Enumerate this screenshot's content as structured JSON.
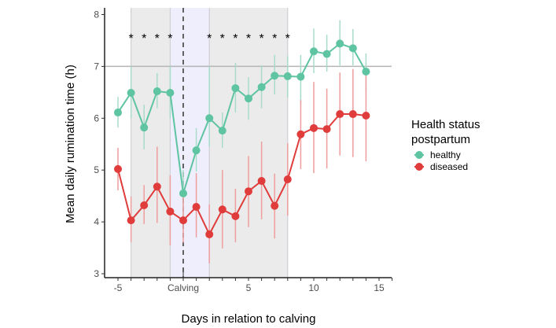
{
  "chart_data": {
    "type": "line",
    "title": "",
    "xlabel": "Days in relation to calving",
    "ylabel": "Mean daily rumination time (h)",
    "xlim": [
      -5.5,
      16
    ],
    "ylim": [
      3,
      8
    ],
    "x_ticks": [
      {
        "value": -5,
        "label": "-5"
      },
      {
        "value": 0,
        "label": "Calving"
      },
      {
        "value": 5,
        "label": "5"
      },
      {
        "value": 10,
        "label": "10"
      },
      {
        "value": 15,
        "label": "15"
      }
    ],
    "y_ticks": [
      {
        "value": 3,
        "label": "3"
      },
      {
        "value": 4,
        "label": "4"
      },
      {
        "value": 5,
        "label": "5"
      },
      {
        "value": 6,
        "label": "6"
      },
      {
        "value": 7,
        "label": "7"
      },
      {
        "value": 8,
        "label": "8"
      }
    ],
    "grid": false,
    "reference_line_y": 7,
    "calving_line_x": 0,
    "shaded_regions": [
      {
        "name": "grey-period",
        "x_start": -4,
        "x_end": 8,
        "color": "#ebebeb"
      },
      {
        "name": "transition-period",
        "x_start": -1,
        "x_end": 2,
        "color": "#eeeefc"
      }
    ],
    "significance_marker": "*",
    "significant_days": [
      -4,
      -3,
      -2,
      -1,
      2,
      3,
      4,
      5,
      6,
      7,
      8
    ],
    "x": [
      -5,
      -4,
      -3,
      -2,
      -1,
      0,
      1,
      2,
      3,
      4,
      5,
      6,
      7,
      8,
      9,
      10,
      11,
      12,
      13,
      14
    ],
    "series": [
      {
        "name": "healthy",
        "color": "#5ec4a1",
        "values": [
          6.11,
          6.49,
          5.82,
          6.52,
          6.49,
          4.55,
          5.38,
          6.0,
          5.76,
          6.58,
          6.38,
          6.6,
          6.82,
          6.81,
          6.8,
          7.29,
          7.24,
          7.44,
          7.35,
          6.9
        ],
        "lower": [
          5.82,
          6.0,
          5.4,
          6.19,
          6.0,
          4.1,
          4.97,
          5.45,
          5.43,
          6.11,
          5.97,
          6.19,
          6.46,
          6.4,
          6.26,
          6.87,
          6.9,
          7.02,
          7.02,
          6.5
        ],
        "upper": [
          6.41,
          7.0,
          6.26,
          6.87,
          7.0,
          5.0,
          5.81,
          7.0,
          6.11,
          7.07,
          6.79,
          7.02,
          7.22,
          7.2,
          7.22,
          7.73,
          7.61,
          7.89,
          7.72,
          7.25
        ]
      },
      {
        "name": "diseased",
        "color": "#e03c3c",
        "values": [
          5.02,
          4.03,
          4.32,
          4.68,
          4.2,
          4.03,
          4.29,
          3.76,
          4.24,
          4.11,
          4.59,
          4.79,
          4.31,
          4.82,
          5.69,
          5.81,
          5.79,
          6.08,
          6.08,
          6.05
        ],
        "lower": [
          4.61,
          3.61,
          3.96,
          3.98,
          3.55,
          3.6,
          3.7,
          3.2,
          3.49,
          3.61,
          3.9,
          4.05,
          3.68,
          4.12,
          5.02,
          4.94,
          5.03,
          5.28,
          5.25,
          5.17
        ],
        "upper": [
          5.43,
          4.49,
          4.71,
          5.45,
          4.9,
          4.5,
          4.94,
          4.34,
          5.0,
          4.64,
          5.27,
          5.55,
          4.93,
          5.52,
          6.35,
          6.7,
          6.57,
          6.88,
          6.95,
          6.9
        ]
      }
    ],
    "legend": {
      "title_line1": "Health status",
      "title_line2": "postpartum",
      "position": "right",
      "entries": [
        {
          "label": "healthy",
          "color": "#5ec4a1"
        },
        {
          "label": "diseased",
          "color": "#e03c3c"
        }
      ]
    }
  }
}
